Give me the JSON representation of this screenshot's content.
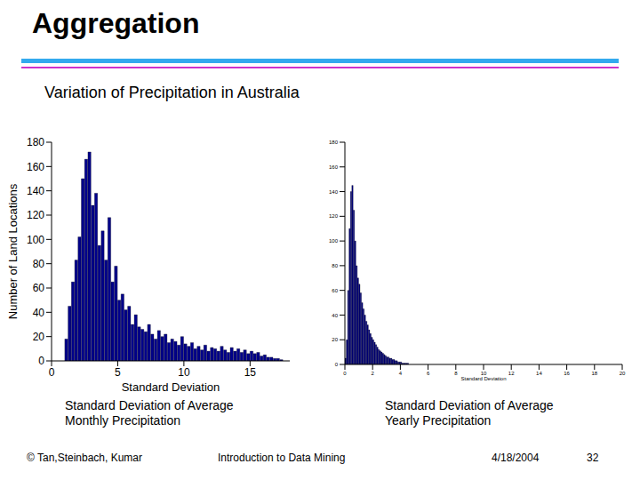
{
  "slide": {
    "title": "Aggregation",
    "subtitle": "Variation of Precipitation in Australia",
    "footer": [
      "© Tan,Steinbach, Kumar",
      "Introduction to Data Mining",
      "4/18/2004",
      "32"
    ]
  },
  "chart_data": [
    {
      "type": "histogram",
      "title": "Standard Deviation of Average Monthly Precipitation",
      "xlabel": "Standard Deviation",
      "ylabel": "Number of Land Locations",
      "color": "#00008b",
      "xlim": [
        0,
        18
      ],
      "xticks": [
        0,
        5,
        10,
        15
      ],
      "ylim": [
        0,
        180
      ],
      "yticks": [
        0,
        20,
        40,
        60,
        80,
        100,
        120,
        140,
        160,
        180
      ],
      "bins": [
        1.0,
        1.25,
        1.5,
        1.75,
        2.0,
        2.25,
        2.5,
        2.75,
        3.0,
        3.25,
        3.5,
        3.75,
        4.0,
        4.25,
        4.5,
        4.75,
        5.0,
        5.25,
        5.5,
        5.75,
        6.0,
        6.25,
        6.5,
        6.75,
        7.0,
        7.25,
        7.5,
        7.75,
        8.0,
        8.25,
        8.5,
        8.75,
        9.0,
        9.25,
        9.5,
        9.75,
        10.0,
        10.25,
        10.5,
        10.75,
        11.0,
        11.25,
        11.5,
        11.75,
        12.0,
        12.25,
        12.5,
        12.75,
        13.0,
        13.25,
        13.5,
        13.75,
        14.0,
        14.25,
        14.5,
        14.75,
        15.0,
        15.25,
        15.5,
        15.75,
        16.0,
        16.25,
        16.5,
        16.75,
        17.0,
        17.25,
        17.5
      ],
      "values": [
        18,
        45,
        65,
        83,
        102,
        150,
        166,
        172,
        128,
        138,
        95,
        107,
        83,
        118,
        65,
        78,
        50,
        55,
        42,
        45,
        30,
        38,
        28,
        26,
        24,
        30,
        22,
        18,
        25,
        20,
        22,
        15,
        18,
        16,
        13,
        20,
        14,
        12,
        15,
        10,
        12,
        9,
        13,
        8,
        11,
        10,
        8,
        12,
        9,
        7,
        11,
        8,
        10,
        7,
        9,
        6,
        8,
        6,
        7,
        4,
        5,
        3,
        3,
        2,
        2,
        1
      ]
    },
    {
      "type": "histogram",
      "title": "Standard Deviation of Average Yearly Precipitation",
      "xlabel": "Standard Deviation",
      "color": "#00008b",
      "xlim": [
        0,
        20
      ],
      "xticks": [
        0,
        2,
        4,
        6,
        8,
        10,
        12,
        14,
        16,
        18,
        20
      ],
      "ylim": [
        0,
        180
      ],
      "yticks": [
        0,
        20,
        40,
        60,
        80,
        100,
        120,
        140,
        160,
        180
      ],
      "bins": [
        0.0,
        0.1,
        0.2,
        0.3,
        0.4,
        0.5,
        0.6,
        0.7,
        0.8,
        0.9,
        1.0,
        1.1,
        1.2,
        1.3,
        1.4,
        1.5,
        1.6,
        1.7,
        1.8,
        1.9,
        2.0,
        2.1,
        2.2,
        2.3,
        2.4,
        2.5,
        2.6,
        2.7,
        2.8,
        2.9,
        3.0,
        3.1,
        3.2,
        3.3,
        3.4,
        3.5,
        3.6,
        3.7,
        3.8,
        3.9,
        4.0,
        4.1,
        4.2,
        4.3,
        4.4,
        4.5,
        4.6
      ],
      "values": [
        5,
        20,
        60,
        110,
        140,
        145,
        125,
        100,
        80,
        70,
        65,
        58,
        50,
        45,
        40,
        35,
        32,
        28,
        25,
        22,
        20,
        18,
        16,
        14,
        12,
        11,
        10,
        9,
        8,
        7,
        6,
        6,
        5,
        5,
        4,
        4,
        3,
        3,
        2,
        2,
        2,
        1,
        1,
        1,
        1,
        1
      ]
    }
  ]
}
